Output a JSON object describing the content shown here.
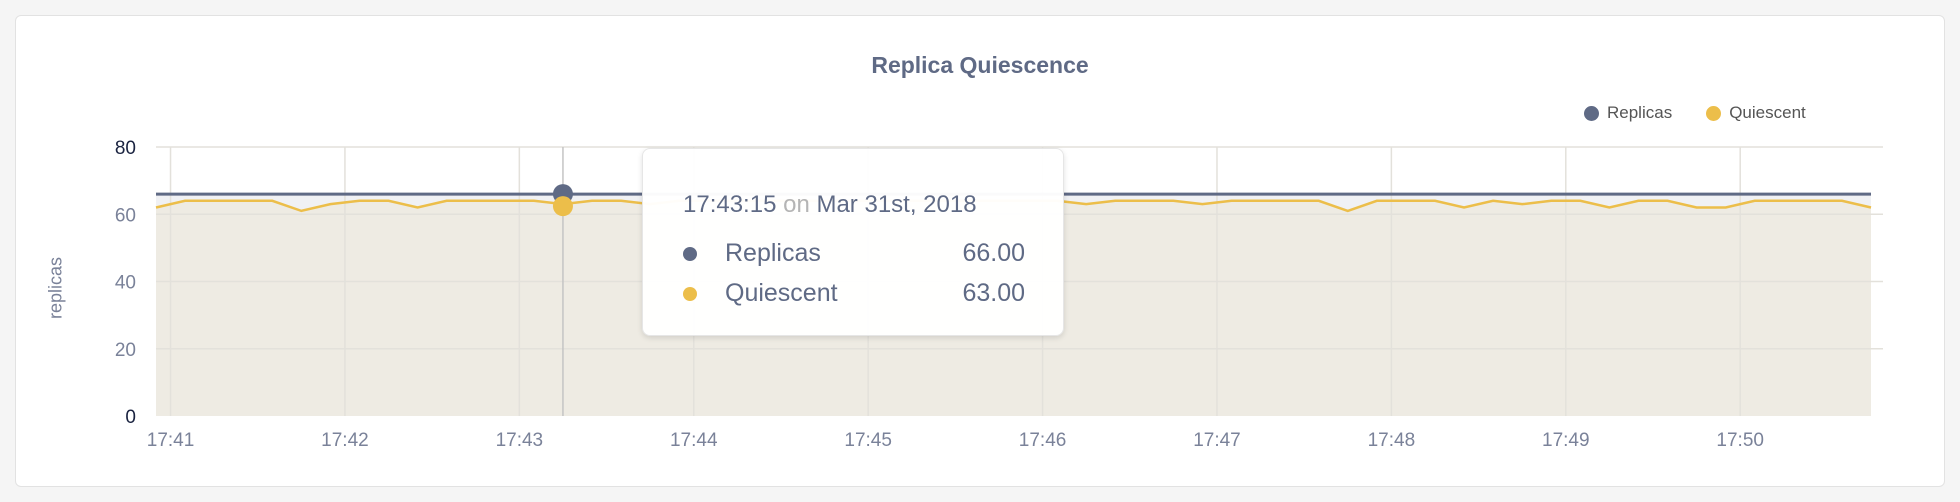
{
  "colors": {
    "replicas": "#5f6a85",
    "quiescent": "#ecbe4a",
    "fill": "#eeebe3",
    "grid": "#e3e1db"
  },
  "chart_data": {
    "type": "line",
    "title": "Replica Quiescence",
    "ylabel": "replicas",
    "xlabel": "",
    "ylim": [
      0,
      80
    ],
    "yticks": [
      "0",
      "20",
      "40",
      "60",
      "80"
    ],
    "xticks": [
      "17:41",
      "17:42",
      "17:43",
      "17:44",
      "17:45",
      "17:46",
      "17:47",
      "17:48",
      "17:49",
      "17:50"
    ],
    "x_start": "17:40:55",
    "x_end": "17:50:45",
    "interval_seconds": 10,
    "grid": true,
    "legend_position": "top-right",
    "legend": [
      "Replicas",
      "Quiescent"
    ],
    "series": [
      {
        "name": "Replicas",
        "color": "#5f6a85",
        "values": [
          66,
          66,
          66,
          66,
          66,
          66,
          66,
          66,
          66,
          66,
          66,
          66,
          66,
          66,
          66,
          66,
          66,
          66,
          66,
          66,
          66,
          66,
          66,
          66,
          66,
          66,
          66,
          66,
          66,
          66,
          66,
          66,
          66,
          66,
          66,
          66,
          66,
          66,
          66,
          66,
          66,
          66,
          66,
          66,
          66,
          66,
          66,
          66,
          66,
          66,
          66,
          66,
          66,
          66,
          66,
          66,
          66,
          66,
          66,
          66
        ]
      },
      {
        "name": "Quiescent",
        "color": "#ecbe4a",
        "values": [
          62,
          64,
          64,
          64,
          64,
          61,
          63,
          64,
          64,
          62,
          64,
          64,
          64,
          64,
          63,
          64,
          64,
          63,
          64,
          64,
          64,
          64,
          64,
          64,
          64,
          64,
          64,
          64,
          64,
          64,
          64,
          64,
          63,
          64,
          64,
          64,
          63,
          64,
          64,
          64,
          64,
          61,
          64,
          64,
          64,
          62,
          64,
          63,
          64,
          64,
          62,
          64,
          64,
          62,
          62,
          64,
          64,
          64,
          64,
          62
        ]
      }
    ],
    "hover_index": 14
  },
  "tooltip": {
    "time": "17:43:15",
    "on": "on",
    "date": "Mar 31st, 2018",
    "rows": [
      {
        "label": "Replicas",
        "value": "66.00"
      },
      {
        "label": "Quiescent",
        "value": "63.00"
      }
    ]
  }
}
